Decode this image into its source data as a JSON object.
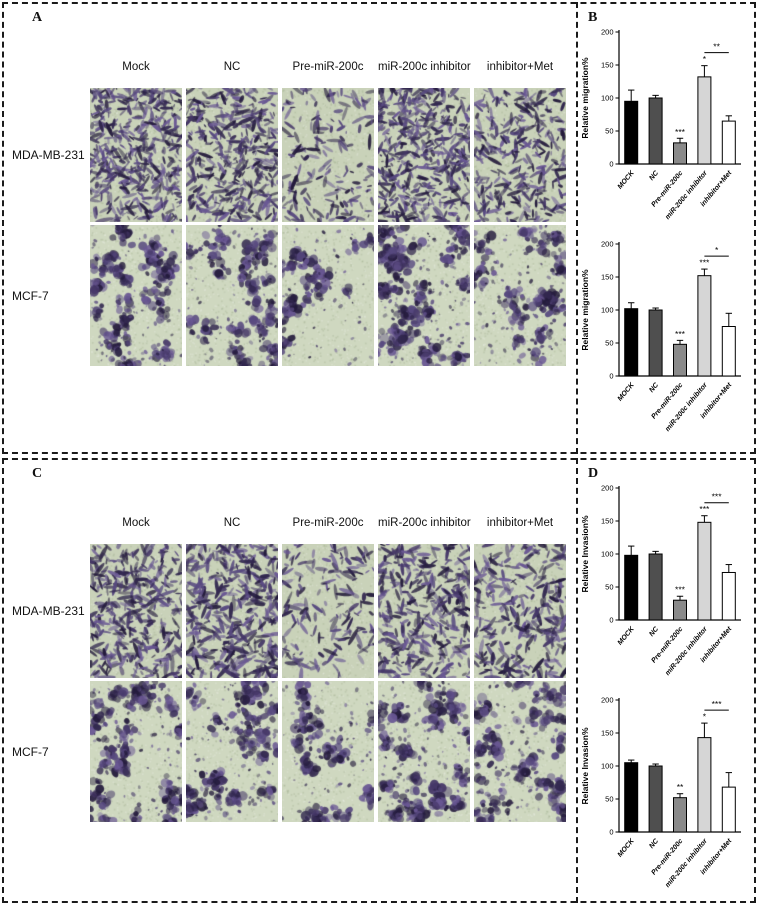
{
  "figure": {
    "sections": [
      {
        "assay": "migration",
        "image_panel": {
          "label": "A",
          "col_headers": [
            "Mock",
            "NC",
            "Pre-miR-200c",
            "miR-200c inhibitor",
            "inhibitor+Met"
          ],
          "rows": [
            {
              "label": "MDA-MB-231",
              "densities": [
                0.85,
                0.8,
                0.32,
                0.9,
                0.6
              ],
              "blob": 2.4,
              "bg": "#c9d2b9"
            },
            {
              "label": "MCF-7",
              "densities": [
                0.75,
                0.7,
                0.45,
                0.85,
                0.6
              ],
              "blob": 5.0,
              "bg": "#cfd8c0"
            }
          ]
        },
        "chart_panel": {
          "label": "B"
        }
      },
      {
        "assay": "invasion",
        "image_panel": {
          "label": "C",
          "col_headers": [
            "Mock",
            "NC",
            "Pre-miR-200c",
            "miR-200c inhibitor",
            "inhibitor+Met"
          ],
          "rows": [
            {
              "label": "MDA-MB-231",
              "densities": [
                0.7,
                0.75,
                0.3,
                0.65,
                0.55
              ],
              "blob": 2.6,
              "bg": "#c9d2b9"
            },
            {
              "label": "MCF-7",
              "densities": [
                0.7,
                0.7,
                0.5,
                0.8,
                0.6
              ],
              "blob": 5.2,
              "bg": "#cfd8c0"
            }
          ]
        },
        "chart_panel": {
          "label": "D"
        }
      }
    ]
  },
  "chart_data": [
    {
      "id": "migration-mda-mb-231",
      "type": "bar",
      "panel": "B",
      "cell_line": "MDA-MB-231",
      "title": "",
      "xlabel": "",
      "ylabel": "Relative migration%",
      "categories": [
        "MOCK",
        "NC",
        "Pre-miR-200c",
        "miR-200c inhibitor",
        "inhibitor+Met"
      ],
      "values": [
        95,
        100,
        32,
        132,
        65
      ],
      "errors": [
        17,
        4,
        7,
        17,
        8
      ],
      "ylim": [
        0,
        200
      ],
      "yticks": [
        0,
        50,
        100,
        150,
        200
      ],
      "bar_colors": [
        "#000000",
        "#4f4f4f",
        "#8a8a8a",
        "#d6d6d6",
        "#ffffff"
      ],
      "significance": [
        "",
        "",
        "***",
        "*",
        ""
      ],
      "bracket": {
        "from": 3,
        "to": 4,
        "label": "**"
      },
      "grid": false,
      "legend": "none"
    },
    {
      "id": "migration-mcf-7",
      "type": "bar",
      "panel": "B",
      "cell_line": "MCF-7",
      "title": "",
      "xlabel": "",
      "ylabel": "Relative migration%",
      "categories": [
        "MOCK",
        "NC",
        "Pre-miR-200c",
        "miR-200c inhibitor",
        "inhibitor+Met"
      ],
      "values": [
        102,
        100,
        48,
        152,
        75
      ],
      "errors": [
        9,
        3,
        6,
        10,
        20
      ],
      "ylim": [
        0,
        200
      ],
      "yticks": [
        0,
        50,
        100,
        150,
        200
      ],
      "bar_colors": [
        "#000000",
        "#4f4f4f",
        "#8a8a8a",
        "#d6d6d6",
        "#ffffff"
      ],
      "significance": [
        "",
        "",
        "***",
        "***",
        ""
      ],
      "bracket": {
        "from": 3,
        "to": 4,
        "label": "*"
      },
      "grid": false,
      "legend": "none"
    },
    {
      "id": "invasion-mda-mb-231",
      "type": "bar",
      "panel": "D",
      "cell_line": "MDA-MB-231",
      "title": "",
      "xlabel": "",
      "ylabel": "Relative Invasion%",
      "categories": [
        "MOCK",
        "NC",
        "Pre-miR-200c",
        "miR-200c inhibitor",
        "inhibitor+Met"
      ],
      "values": [
        98,
        100,
        30,
        148,
        72
      ],
      "errors": [
        14,
        4,
        6,
        10,
        12
      ],
      "ylim": [
        0,
        200
      ],
      "yticks": [
        0,
        50,
        100,
        150,
        200
      ],
      "bar_colors": [
        "#000000",
        "#4f4f4f",
        "#8a8a8a",
        "#d6d6d6",
        "#ffffff"
      ],
      "significance": [
        "",
        "",
        "***",
        "***",
        ""
      ],
      "bracket": {
        "from": 3,
        "to": 4,
        "label": "***"
      },
      "grid": false,
      "legend": "none"
    },
    {
      "id": "invasion-mcf-7",
      "type": "bar",
      "panel": "D",
      "cell_line": "MCF-7",
      "title": "",
      "xlabel": "",
      "ylabel": "Relative Invasion%",
      "categories": [
        "MOCK",
        "NC",
        "Pre-miR-200c",
        "miR-200c inhibitor",
        "inhibitor+Met"
      ],
      "values": [
        105,
        100,
        52,
        143,
        68
      ],
      "errors": [
        4,
        3,
        6,
        22,
        22
      ],
      "ylim": [
        0,
        200
      ],
      "yticks": [
        0,
        50,
        100,
        150,
        200
      ],
      "bar_colors": [
        "#000000",
        "#4f4f4f",
        "#8a8a8a",
        "#d6d6d6",
        "#ffffff"
      ],
      "significance": [
        "",
        "",
        "**",
        "*",
        ""
      ],
      "bracket": {
        "from": 3,
        "to": 4,
        "label": "***"
      },
      "grid": false,
      "legend": "none"
    }
  ]
}
